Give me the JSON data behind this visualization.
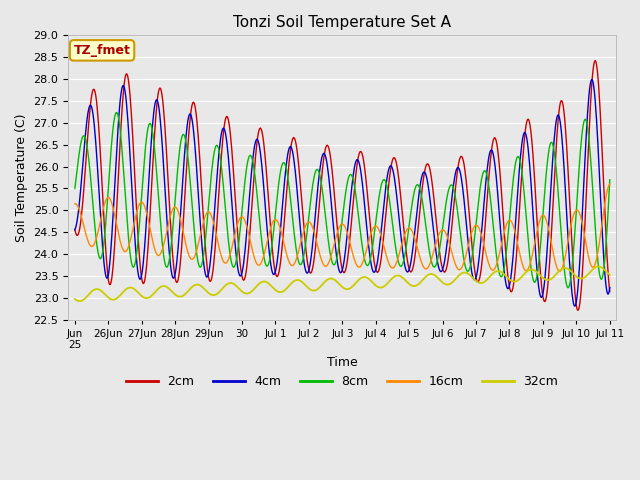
{
  "title": "Tonzi Soil Temperature Set A",
  "xlabel": "Time",
  "ylabel": "Soil Temperature (C)",
  "ylim": [
    22.5,
    29.0
  ],
  "line_colors": {
    "2cm": "#cc0000",
    "4cm": "#0000cc",
    "8cm": "#00bb00",
    "16cm": "#ff8800",
    "32cm": "#cccc00"
  },
  "legend_labels": [
    "2cm",
    "4cm",
    "8cm",
    "16cm",
    "32cm"
  ],
  "annotation_text": "TZ_fmet",
  "annotation_color": "#aa0000",
  "annotation_bg": "#ffffcc",
  "annotation_edge": "#cc9900",
  "background_color": "#e8e8e8",
  "title_fontsize": 11,
  "axis_fontsize": 9,
  "tick_fontsize": 8,
  "x_tick_labels": [
    "Jun\n25",
    "26Jun",
    "27Jun",
    "28Jun",
    "29Jun",
    "30",
    "Jul 1",
    "Jul 2",
    "Jul 3",
    "Jul 4",
    "Jul 5",
    "Jul 6",
    "Jul 7",
    "Jul 8",
    "Jul 9",
    "Jul 10",
    "Jul 11"
  ],
  "figwidth": 6.4,
  "figheight": 4.8,
  "dpi": 100
}
